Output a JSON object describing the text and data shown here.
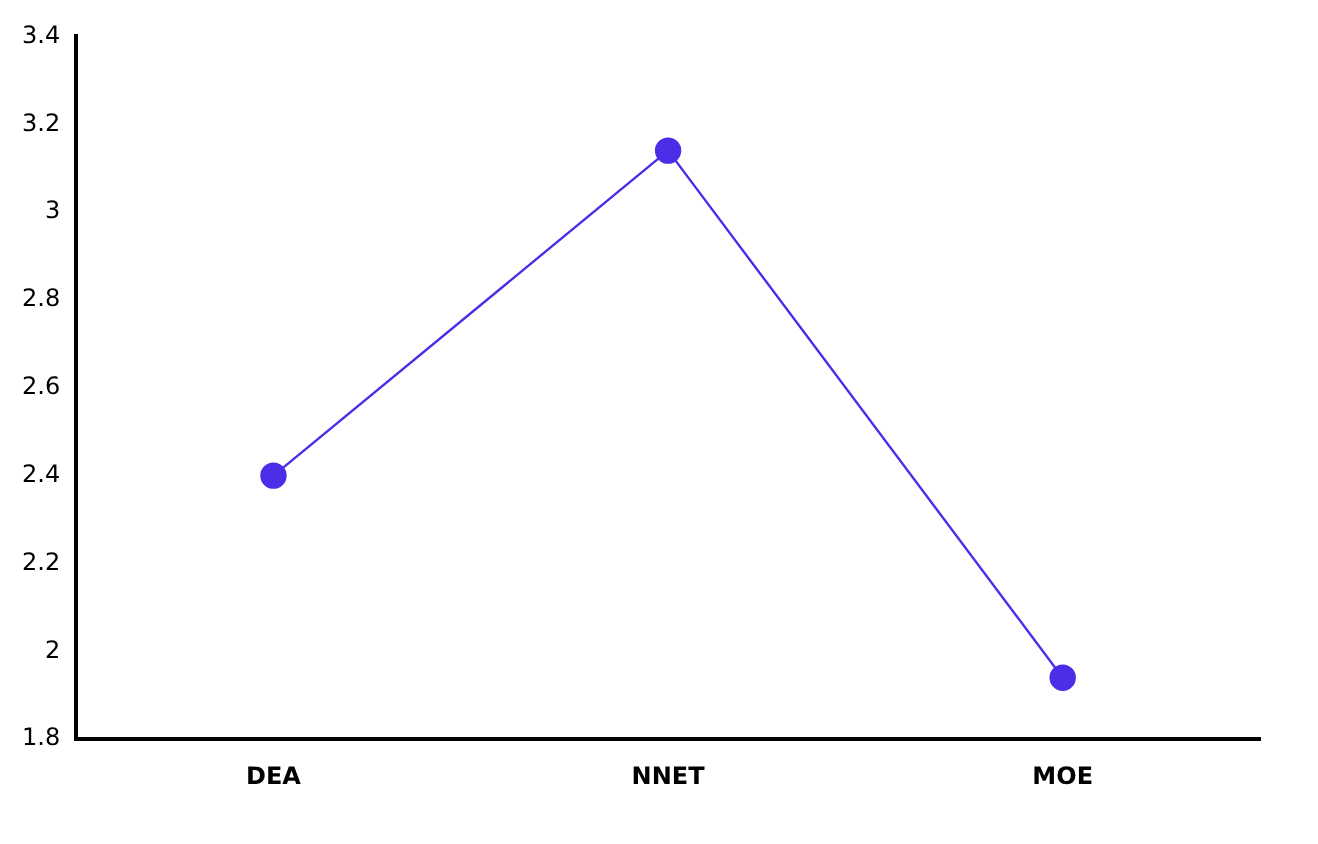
{
  "chart_data": {
    "type": "line",
    "categories": [
      "DEA",
      "NNET",
      "MOE"
    ],
    "series": [
      {
        "color": "#4b2ee8",
        "values": [
          2.4,
          3.14,
          1.94
        ]
      }
    ],
    "ylim": [
      1.8,
      3.4
    ],
    "yticks": [
      1.8,
      2,
      2.2,
      2.4,
      2.6,
      2.8,
      3,
      3.2,
      3.4
    ],
    "grid": false,
    "legend": false,
    "marker": "circle",
    "line_style": "solid"
  }
}
